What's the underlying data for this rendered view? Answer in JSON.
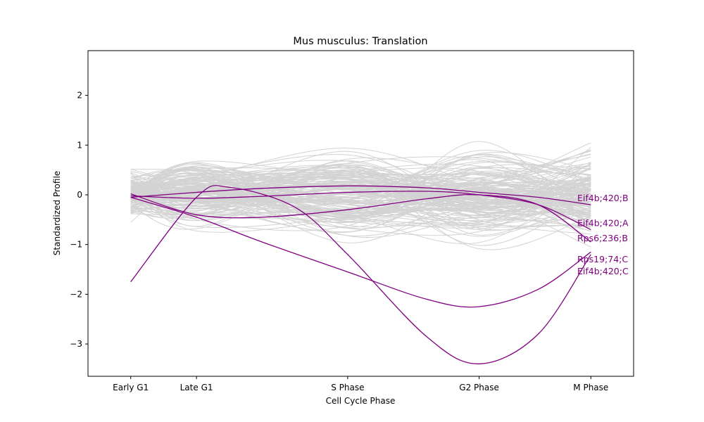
{
  "chart_data": {
    "type": "line",
    "title": "Mus musculus: Translation",
    "xlabel": "Cell Cycle Phase",
    "ylabel": "Standardized Profile",
    "x_ticks": [
      {
        "label": "Early G1",
        "x": 0
      },
      {
        "label": "Late G1",
        "x": 1
      },
      {
        "label": "S Phase",
        "x": 3.3
      },
      {
        "label": "G2 Phase",
        "x": 5.3
      },
      {
        "label": "M Phase",
        "x": 7
      }
    ],
    "xlim": [
      -0.65,
      7.65
    ],
    "ylim": [
      -3.65,
      2.9
    ],
    "y_ticks": [
      -3,
      -2,
      -1,
      0,
      1,
      2
    ],
    "y_tick_labels": [
      "−3",
      "−2",
      "−1",
      "0",
      "1",
      "2"
    ],
    "background_series_color": "#d3d3d3",
    "highlight_color": "#800080",
    "background_series_count": 160,
    "background_note": "Many grey background gene profiles (approximate, unlabeled)",
    "highlighted_series": [
      {
        "name": "Eif4b;420;B",
        "x": [
          0,
          1,
          2,
          3.3,
          4.5,
          5.3,
          6.2,
          7
        ],
        "y": [
          -0.05,
          0.05,
          0.13,
          0.18,
          0.14,
          0.05,
          -0.05,
          -0.2
        ]
      },
      {
        "name": "Eif4b;420;A",
        "x": [
          0,
          1,
          2,
          3.3,
          4.5,
          5.3,
          6.2,
          7
        ],
        "y": [
          -0.02,
          -0.07,
          -0.03,
          0.05,
          0.07,
          0.0,
          -0.2,
          -0.7
        ]
      },
      {
        "name": "Rps6;236;B",
        "x": [
          0,
          1,
          2,
          3.3,
          4.5,
          5.3,
          6.2,
          7
        ],
        "y": [
          0.02,
          -0.4,
          -0.45,
          -0.3,
          -0.08,
          0.0,
          -0.2,
          -0.95
        ]
      },
      {
        "name": "Rps19;74;C",
        "x": [
          0,
          1,
          2,
          3.3,
          4.5,
          5.3,
          6.2,
          7
        ],
        "y": [
          -0.05,
          -0.45,
          -0.95,
          -1.55,
          -2.1,
          -2.25,
          -1.9,
          -1.15
        ]
      },
      {
        "name": "Eif4b;420;C",
        "x": [
          0,
          1,
          1.5,
          2.5,
          3.3,
          4.5,
          5.3,
          6.2,
          7
        ],
        "y": [
          -1.75,
          -0.05,
          0.15,
          -0.25,
          -1.2,
          -2.85,
          -3.4,
          -2.8,
          -1.2
        ]
      }
    ],
    "highlight_label_y": [
      -0.07,
      -0.57,
      -0.88,
      -1.3,
      -1.54
    ],
    "grid": false,
    "legend": "none (series labels at right edge)"
  }
}
